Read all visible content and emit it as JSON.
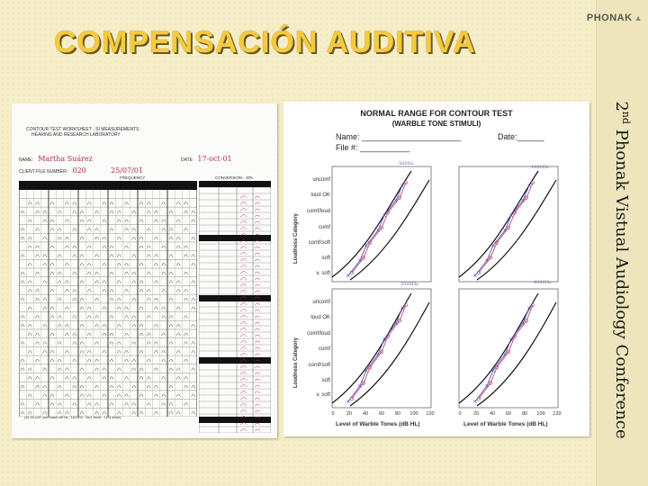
{
  "slide": {
    "title": "COMPENSACIÓN AUDITIVA",
    "logo": "PHONAK",
    "side_text_ordinal": "2",
    "side_text_suffix": "nd",
    "side_text_rest": " Phonak Vistual Audiology Conference"
  },
  "worksheet": {
    "heading_1": "CONTOUR TEST WORKSHEET - SI MEASUREMENTS",
    "heading_2": "HEARING AND RESEARCH LABORATORY",
    "name_label": "NAME:",
    "name_value": "Martha Suárez",
    "date_label": "DATE",
    "date_value": "17-oct-01",
    "client_label": "CLIENT FILE NUMBER:",
    "client_value": "020",
    "client_date": "25/07/01",
    "frequency_label": "FREQUENCY",
    "conversion_label": "CONVERSION - SPL",
    "footer": "(1k HL125: purchase dB HL; 1k/25% ; 3k/1 level ; 1k/3  other)"
  },
  "chart": {
    "title_1": "NORMAL RANGE FOR CONTOUR TEST",
    "title_2": "(WARBLE TONE STIMULI)",
    "name_label": "Name:",
    "date_label": "Date:",
    "file_label": "File #:",
    "y_title": "Loudness Category",
    "x_title": "Level of Warble Tones (dB HL)",
    "note_tr": "1000Hz",
    "note_tl": "500Hz",
    "note_br": "4000Hz",
    "note_bl": "2000Hz"
  },
  "chart_data": {
    "type": "line",
    "x_ticks": [
      "0",
      "20",
      "40",
      "60",
      "80",
      "100",
      "120"
    ],
    "y_categories": [
      "v. soft",
      "soft",
      "comf/soft",
      "comf",
      "comf/loud",
      "loud OK",
      "uncomf"
    ],
    "xlim": [
      0,
      120
    ],
    "series": [
      {
        "values": []
      },
      {
        "values": []
      }
    ]
  }
}
